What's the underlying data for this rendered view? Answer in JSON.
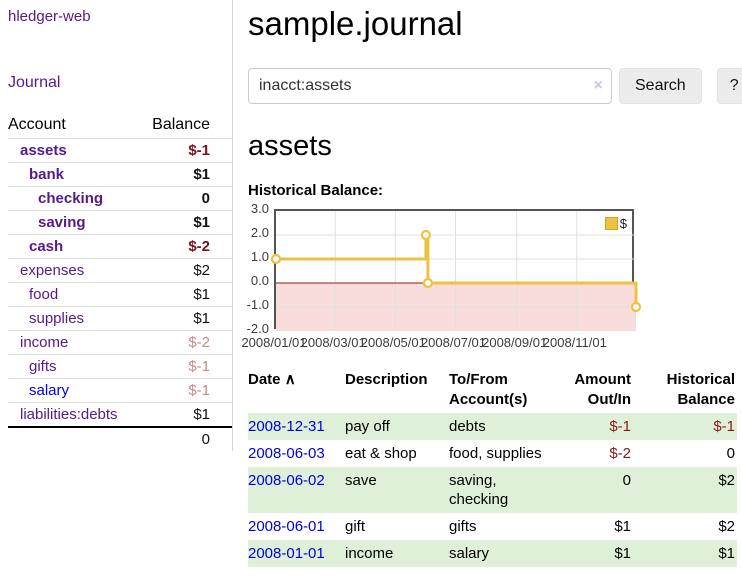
{
  "app": {
    "brand": "hledger-web"
  },
  "nav": {
    "journal": "Journal"
  },
  "sidebar": {
    "headers": {
      "account": "Account",
      "balance": "Balance"
    },
    "rows": [
      {
        "account": "assets",
        "balance": "$-1",
        "depth": 1,
        "bold": true,
        "link_color": "purple",
        "amount_style": "neg-strong"
      },
      {
        "account": "bank",
        "balance": "$1",
        "depth": 2,
        "bold": true,
        "link_color": "purple",
        "amount_style": "bold"
      },
      {
        "account": "checking",
        "balance": "0",
        "depth": 3,
        "bold": true,
        "link_color": "purple",
        "amount_style": "bold"
      },
      {
        "account": "saving",
        "balance": "$1",
        "depth": 3,
        "bold": true,
        "link_color": "purple",
        "amount_style": "bold"
      },
      {
        "account": "cash",
        "balance": "$-2",
        "depth": 2,
        "bold": true,
        "link_color": "purple",
        "amount_style": "neg-strong"
      },
      {
        "account": "expenses",
        "balance": "$2",
        "depth": 1,
        "bold": false,
        "link_color": "purple",
        "amount_style": "plain"
      },
      {
        "account": "food",
        "balance": "$1",
        "depth": 2,
        "bold": false,
        "link_color": "purple",
        "amount_style": "plain"
      },
      {
        "account": "supplies",
        "balance": "$1",
        "depth": 2,
        "bold": false,
        "link_color": "purple",
        "amount_style": "plain"
      },
      {
        "account": "income",
        "balance": "$-2",
        "depth": 1,
        "bold": false,
        "link_color": "purple",
        "amount_style": "neg-soft"
      },
      {
        "account": "gifts",
        "balance": "$-1",
        "depth": 2,
        "bold": false,
        "link_color": "purple",
        "amount_style": "neg-soft"
      },
      {
        "account": "salary",
        "balance": "$-1",
        "depth": 2,
        "bold": false,
        "link_color": "blue",
        "amount_style": "neg-soft"
      },
      {
        "account": "liabilities:debts",
        "balance": "$1",
        "depth": 1,
        "bold": false,
        "link_color": "purple",
        "amount_style": "plain"
      }
    ],
    "total": "0"
  },
  "header": {
    "title": "sample.journal"
  },
  "search": {
    "value": "inacct:assets",
    "clear_icon": "×",
    "button_label": "Search",
    "help_label": "?"
  },
  "account_page": {
    "title": "assets",
    "chart_label": "Historical Balance:"
  },
  "chart_data": {
    "type": "line",
    "title": "Historical Balance:",
    "legend": [
      {
        "label": "$",
        "color": "#edc240"
      }
    ],
    "ylim": [
      -2,
      3
    ],
    "y_ticks": [
      3.0,
      2.0,
      1.0,
      0.0,
      -1.0,
      -2.0
    ],
    "x_range_days": 365,
    "x_ticks": [
      {
        "label": "2008/01/01",
        "day": 0
      },
      {
        "label": "2008/03/01",
        "day": 60
      },
      {
        "label": "2008/05/01",
        "day": 121
      },
      {
        "label": "2008/07/01",
        "day": 182
      },
      {
        "label": "2008/09/01",
        "day": 244
      },
      {
        "label": "2008/11/01",
        "day": 305
      }
    ],
    "series": [
      {
        "name": "$",
        "color": "#edc240",
        "step": true,
        "points": [
          {
            "date": "2008-01-01",
            "day": 0,
            "value": 1
          },
          {
            "date": "2008-06-01",
            "day": 152,
            "value": 2
          },
          {
            "date": "2008-06-03",
            "day": 154,
            "value": 0
          },
          {
            "date": "2008-12-31",
            "day": 365,
            "value": -1
          }
        ]
      }
    ],
    "negative_region_shaded": true
  },
  "register": {
    "headers": {
      "date": "Date",
      "description": "Description",
      "accounts": "To/From Account(s)",
      "amount": "Amount Out/In",
      "balance": "Historical Balance"
    },
    "sort_indicator": "∧",
    "rows": [
      {
        "date": "2008-12-31",
        "description": "pay off",
        "accounts": "debts",
        "amount": "$-1",
        "balance": "$-1",
        "amount_neg": true,
        "balance_neg": true
      },
      {
        "date": "2008-06-03",
        "description": "eat & shop",
        "accounts": "food, supplies",
        "amount": "$-2",
        "balance": "0",
        "amount_neg": true,
        "balance_neg": false
      },
      {
        "date": "2008-06-02",
        "description": "save",
        "accounts": "saving, checking",
        "amount": "0",
        "balance": "$2",
        "amount_neg": false,
        "balance_neg": false
      },
      {
        "date": "2008-06-01",
        "description": "gift",
        "accounts": "gifts",
        "amount": "$1",
        "balance": "$2",
        "amount_neg": false,
        "balance_neg": false
      },
      {
        "date": "2008-01-01",
        "description": "income",
        "accounts": "salary",
        "amount": "$1",
        "balance": "$1",
        "amount_neg": false,
        "balance_neg": false
      }
    ]
  },
  "colors": {
    "accent_purple": "#551a8b",
    "link_blue": "#0000e0",
    "negative_strong": "#7a1021",
    "negative_soft": "#c98a8a",
    "negative": "#8b1a1a",
    "stripe_green": "#dff0d8",
    "chart_gold": "#edc240",
    "chart_negative_fill": "#f9dddd",
    "zero_line": "#8b1b1b",
    "grid_line": "#e0e0e0",
    "chart_border": "#545454"
  }
}
